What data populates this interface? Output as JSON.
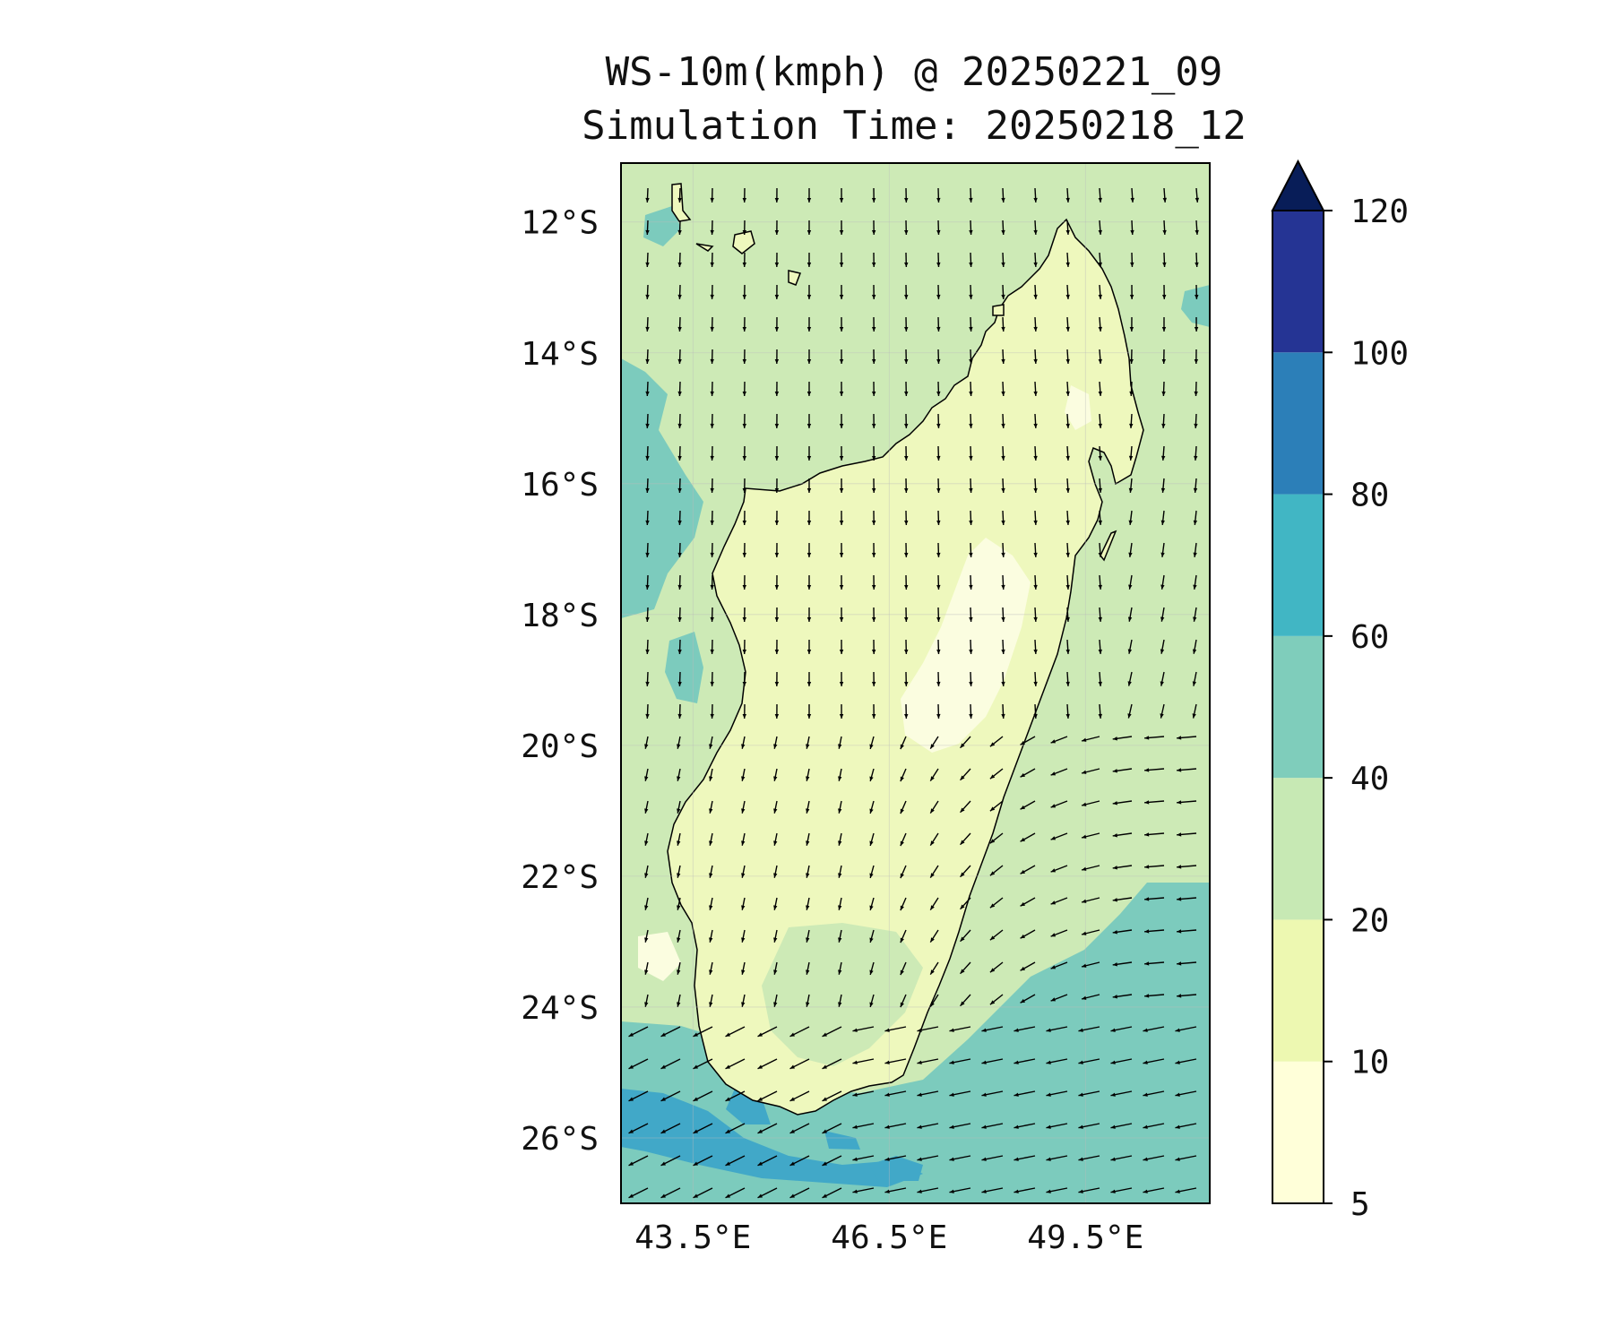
{
  "title": {
    "line1": "WS-10m(kmph) @ 20250221_09",
    "line2": "Simulation Time: 20250218_12"
  },
  "map": {
    "region": "Madagascar",
    "lon_range": [
      42.4,
      51.4
    ],
    "lat_range": [
      -27.0,
      -11.1
    ],
    "lon_ticks": [
      "43.5°E",
      "46.5°E",
      "49.5°E"
    ],
    "lat_ticks": [
      "12°S",
      "14°S",
      "16°S",
      "18°S",
      "20°S",
      "22°S",
      "24°S",
      "26°S"
    ],
    "gridlines": true
  },
  "colorbar": {
    "levels": [
      "5",
      "10",
      "20",
      "40",
      "60",
      "80",
      "100",
      "120"
    ],
    "colors": [
      "#ffffd9",
      "#edf8b1",
      "#c7e9b4",
      "#7fcdbb",
      "#41b6c4",
      "#2c7fb8",
      "#253494",
      "#081d58"
    ],
    "extend": "max"
  },
  "colors": {
    "ocean_north": "#cdeab6",
    "ocean_south": "#7ccbbd",
    "ocean_strong": "#41a8c8",
    "land_low": "#eef8bd",
    "land_calm": "#fbfde0",
    "coastline": "#000000",
    "arrow": "#000000"
  }
}
